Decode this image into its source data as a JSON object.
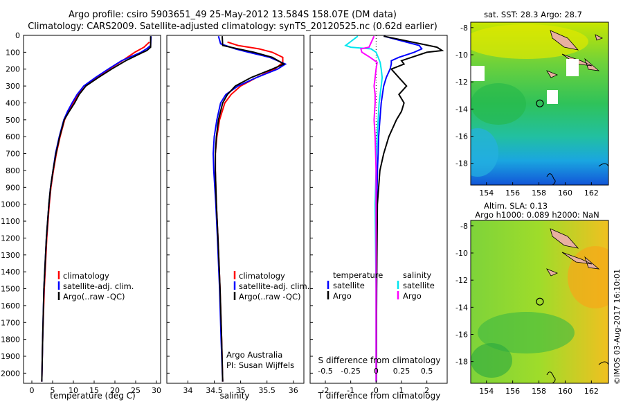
{
  "header": {
    "line1": "Argo profile: csiro 5903651_49 25-May-2012 13.584S 158.07E (DM data)",
    "line2": "Climatology: CARS2009. Satellite-adjusted climatology: synTS_20120525.nc (0.62d earlier)"
  },
  "colors": {
    "climatology": "#ff0000",
    "satellite": "#0000ff",
    "argo": "#000000",
    "salinity_satellite": "#00e5ee",
    "salinity_argo": "#ff00ff",
    "map_land": "#e8b0a0"
  },
  "chart_data": [
    {
      "type": "line",
      "title": "",
      "xlabel": "temperature (deg C)",
      "ylabel": "",
      "xlim": [
        -2,
        31
      ],
      "ylim": [
        2060,
        0
      ],
      "xticks": [
        "0",
        "5",
        "10",
        "15",
        "20",
        "25",
        "30"
      ],
      "xtick_values": [
        0,
        5,
        10,
        15,
        20,
        25,
        30
      ],
      "yticks": [
        "0",
        "100",
        "200",
        "300",
        "400",
        "500",
        "600",
        "700",
        "800",
        "900",
        "1000",
        "1100",
        "1200",
        "1300",
        "1400",
        "1500",
        "1600",
        "1700",
        "1800",
        "1900",
        "2000"
      ],
      "legend": [
        "climatology",
        "satellite-adj. clim.",
        "Argo(..raw -QC)"
      ],
      "series": [
        {
          "name": "climatology",
          "depth": [
            40,
            70,
            100,
            150,
            200,
            250,
            300,
            350,
            400,
            450,
            500,
            600,
            700,
            800,
            900,
            1000,
            1200,
            1500,
            1800,
            2050
          ],
          "values": [
            28.3,
            27.0,
            24.8,
            21.8,
            18.6,
            15.5,
            13.0,
            11.2,
            9.9,
            8.8,
            7.9,
            6.8,
            5.9,
            5.2,
            4.6,
            4.2,
            3.6,
            3.0,
            2.6,
            2.4
          ]
        },
        {
          "name": "satellite-adj. clim.",
          "depth": [
            5,
            60,
            80,
            100,
            150,
            200,
            250,
            300,
            350,
            400,
            450,
            500,
            600,
            700,
            800,
            900,
            1000,
            1200,
            1500,
            1800,
            2050
          ],
          "values": [
            28.7,
            28.6,
            27.6,
            26.3,
            21.6,
            18.4,
            15.3,
            12.5,
            10.9,
            9.7,
            8.6,
            7.7,
            6.6,
            5.7,
            5.1,
            4.5,
            4.1,
            3.5,
            2.9,
            2.6,
            2.4
          ]
        },
        {
          "name": "Argo(..raw -QC)",
          "depth": [
            5,
            70,
            90,
            100,
            150,
            200,
            250,
            300,
            350,
            400,
            450,
            500,
            600,
            700,
            800,
            900,
            1000,
            1200,
            1500,
            1800,
            2050
          ],
          "values": [
            28.6,
            28.6,
            27.7,
            26.8,
            22.6,
            19.2,
            16.0,
            13.0,
            11.4,
            10.3,
            9.0,
            7.8,
            6.7,
            5.8,
            5.1,
            4.5,
            4.1,
            3.5,
            2.9,
            2.6,
            2.4
          ]
        }
      ]
    },
    {
      "type": "line",
      "title": "",
      "xlabel": "salinity",
      "ylabel": "",
      "xlim": [
        33.6,
        36.2
      ],
      "ylim": [
        2060,
        0
      ],
      "xticks": [
        "34",
        "34.5",
        "35",
        "35.5",
        "36"
      ],
      "xtick_values": [
        34,
        34.5,
        35,
        35.5,
        36
      ],
      "legend": [
        "climatology",
        "satellite-adj. clim.",
        "Argo(..raw -QC)"
      ],
      "annotations": [
        "Argo Australia",
        "PI: Susan Wijffels"
      ],
      "series": [
        {
          "name": "climatology",
          "depth": [
            40,
            60,
            80,
            100,
            130,
            160,
            200,
            250,
            300,
            350,
            400,
            500,
            600,
            700,
            800,
            900,
            1000,
            1200,
            1500,
            1800,
            2050
          ],
          "values": [
            34.75,
            34.95,
            35.35,
            35.6,
            35.8,
            35.8,
            35.65,
            35.3,
            35.0,
            34.82,
            34.7,
            34.6,
            34.55,
            34.52,
            34.52,
            34.53,
            34.54,
            34.57,
            34.61,
            34.64,
            34.66
          ]
        },
        {
          "name": "satellite-adj. clim.",
          "depth": [
            5,
            50,
            80,
            100,
            130,
            170,
            200,
            250,
            300,
            350,
            400,
            500,
            600,
            700,
            800,
            900,
            1000,
            1200,
            1500,
            1800,
            2050
          ],
          "values": [
            34.58,
            34.62,
            34.9,
            35.15,
            35.55,
            35.85,
            35.7,
            35.3,
            34.95,
            34.72,
            34.62,
            34.55,
            34.5,
            34.48,
            34.49,
            34.51,
            34.53,
            34.56,
            34.6,
            34.63,
            34.66
          ]
        },
        {
          "name": "Argo(..raw -QC)",
          "depth": [
            5,
            60,
            80,
            100,
            130,
            170,
            200,
            250,
            300,
            350,
            400,
            500,
            600,
            700,
            800,
            900,
            1000,
            1200,
            1500,
            1800,
            2050
          ],
          "values": [
            34.65,
            34.66,
            34.95,
            35.25,
            35.6,
            35.82,
            35.6,
            35.2,
            34.9,
            34.75,
            34.66,
            34.58,
            34.54,
            34.52,
            34.52,
            34.53,
            34.54,
            34.57,
            34.61,
            34.64,
            34.66
          ]
        }
      ]
    },
    {
      "type": "line",
      "title": "",
      "xlabel": "T difference from climatology",
      "xlabel_top": "S difference from climatology",
      "xlim": [
        -2.6,
        2.8
      ],
      "ylim": [
        2060,
        0
      ],
      "xticks": [
        "-2",
        "-1",
        "0",
        "1",
        "2"
      ],
      "xtick_values": [
        -2,
        -1,
        0,
        1,
        2
      ],
      "xticks_top": [
        "-0.5",
        "-0.25",
        "0",
        "0.25",
        "0.5"
      ],
      "xtick_top_values": [
        -0.5,
        -0.25,
        0,
        0.25,
        0.5
      ],
      "legend_temperature_title": "temperature",
      "legend_salinity_title": "salinity",
      "legend_temperature": [
        "satellite",
        "Argo"
      ],
      "legend_salinity": [
        "satellite",
        "Argo"
      ],
      "series": [
        {
          "name": "temperature satellite",
          "depth": [
            5,
            60,
            80,
            100,
            130,
            150,
            170,
            200,
            250,
            300,
            400,
            500,
            600,
            700,
            800,
            1000,
            1500,
            2050
          ],
          "values": [
            0.3,
            1.7,
            1.8,
            1.5,
            0.9,
            0.6,
            0.6,
            0.55,
            0.4,
            0.3,
            0.2,
            0.15,
            0.1,
            0.08,
            0.05,
            0.03,
            0.02,
            0.01
          ]
        },
        {
          "name": "temperature Argo",
          "depth": [
            5,
            70,
            90,
            100,
            130,
            150,
            170,
            200,
            250,
            300,
            350,
            400,
            450,
            500,
            600,
            700,
            800,
            1000,
            1500,
            2050
          ],
          "values": [
            0.3,
            2.4,
            2.6,
            2.0,
            1.4,
            1.0,
            1.1,
            0.6,
            0.9,
            1.2,
            0.9,
            1.1,
            1.0,
            0.8,
            0.5,
            0.3,
            0.15,
            0.05,
            0.02,
            0.01
          ]
        },
        {
          "name": "salinity satellite",
          "depth": [
            5,
            60,
            70,
            80,
            100,
            130,
            160,
            200,
            250,
            300,
            400,
            500,
            600,
            800,
            1000,
            1500,
            2050
          ],
          "values": [
            -0.18,
            -0.3,
            -0.25,
            -0.05,
            0.0,
            0.02,
            0.04,
            0.05,
            0.06,
            0.05,
            0.03,
            0.02,
            0.01,
            0.0,
            -0.01,
            0.0,
            0.0
          ]
        },
        {
          "name": "salinity Argo",
          "depth": [
            5,
            70,
            80,
            100,
            130,
            160,
            200,
            250,
            300,
            350,
            400,
            500,
            600,
            800,
            1000,
            1500,
            2050
          ],
          "values": [
            -0.02,
            -0.07,
            -0.15,
            -0.14,
            -0.06,
            0.01,
            0.0,
            -0.01,
            -0.02,
            -0.01,
            -0.01,
            -0.02,
            -0.01,
            0.0,
            0.0,
            0.0,
            0.0
          ]
        }
      ]
    },
    {
      "type": "heatmap",
      "title": "sat. SST: 28.3 Argo: 28.7",
      "xlim": [
        152.8,
        163.3
      ],
      "ylim": [
        -19.6,
        -7.6
      ],
      "xticks": [
        "154",
        "156",
        "158",
        "160",
        "162"
      ],
      "xtick_values": [
        154,
        156,
        158,
        160,
        162
      ],
      "yticks": [
        "-8",
        "-10",
        "-12",
        "-14",
        "-16",
        "-18"
      ],
      "ytick_values": [
        -8,
        -10,
        -12,
        -14,
        -16,
        -18
      ],
      "argo_position": {
        "lon": 158.07,
        "lat": -13.584
      }
    },
    {
      "type": "heatmap",
      "title": "Altim. SLA: 0.13",
      "subtitle": "Argo h1000: 0.089 h2000: NaN",
      "xlim": [
        152.8,
        163.3
      ],
      "ylim": [
        -19.6,
        -7.6
      ],
      "xticks": [
        "154",
        "156",
        "158",
        "160",
        "162"
      ],
      "xtick_values": [
        154,
        156,
        158,
        160,
        162
      ],
      "yticks": [
        "-8",
        "-10",
        "-12",
        "-14",
        "-16",
        "-18"
      ],
      "ytick_values": [
        -8,
        -10,
        -12,
        -14,
        -16,
        -18
      ],
      "argo_position": {
        "lon": 158.07,
        "lat": -13.584
      }
    }
  ],
  "footer": {
    "credit": "©IMOS 03-Aug-2017 16:10:01"
  }
}
